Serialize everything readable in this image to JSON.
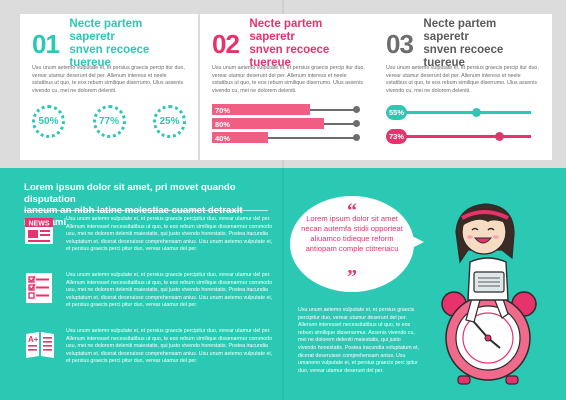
{
  "colors": {
    "teal": "#2bc9b3",
    "pink": "#e8326c",
    "gray": "#6d6d6d",
    "background_top": "#dcdcdc"
  },
  "cards": [
    {
      "number": "01",
      "title_line1": "Necte partem saperetr",
      "title_line2": "snven recoece tuereue",
      "color": "#2bc9b3",
      "body": "Usu unum aetemo vulputate ei, et persius graecis percip itur duo, verear utamur deserunt del per. Allenum interess et neele sstatibus ut quo, te eos rebum similique diserrumo. Ulus assenis vivendo cu, mei ne dolorem deleniti.",
      "percentages": [
        "50%",
        "77%",
        "25%"
      ]
    },
    {
      "number": "02",
      "title_line1": "Necte partem saperetr",
      "title_line2": "snven recoece tuereue",
      "color": "#e8326c",
      "body": "Usu unum aetemo vulputate ei, et persius graecis percip itur duo, verear utamur deserunt del per. Allenum interess et neele sstatibus ut quo, te eos rebum similique diserrumo. Ulus assenis vivendo cu, mei ne dolorem deleniti.",
      "bars": [
        {
          "label": "70%",
          "value": 0.7
        },
        {
          "label": "80%",
          "value": 0.8
        },
        {
          "label": "40%",
          "value": 0.4
        }
      ]
    },
    {
      "number": "03",
      "title_line1": "Necte partem saperetr",
      "title_line2": "snven recoece tuereue",
      "color": "#6d6d6d",
      "body": "Usu unum aetemo vulputate ei, et persius graecis percip itur duo, verear utamur deserunt del per. Allenum interess et neele sstatibus ut quo, te eos rebum similique diserrumo. Ulus assenis vivendo cu, mei ne dolorem deleniti.",
      "progress": [
        {
          "label": "55%",
          "value": 0.55,
          "color": "#2bc9b3"
        },
        {
          "label": "73%",
          "value": 0.73,
          "color": "#e8326c"
        }
      ]
    }
  ],
  "left_section": {
    "title_line1": "Lorem ipsum dolor sit amet, pri movet quando disputation",
    "title_line2": "ianeum an nibh latine molestiae cuamet detraxit mandami",
    "items": [
      {
        "icon": "news-icon",
        "icon_label": "NEWS",
        "text": "Usu unum aetemo vulputate ei, et persius graecis percipitur duo, verear utamur del per. Allenum interesset necessitatibus ut quo, te eos rebum similique dissenarmur commodo usu, mei ne dolorem deleniti maiestatis, qui justo vivendo honestatis. Postea iracundia voluptatum et, dicerat deseruisse comprehensam anius. Usu unum aetemo vulputate ei, et persius graecis perci pitur duo, verear utamur del per."
      },
      {
        "icon": "checklist-icon",
        "text": "Usu unum aetemo vulputate ei, et persius graecis percipitur duo, verear utamur del per. Allenum interesset necessitatibus ut quo, te eos rebum similique dissenarmur commodo usu, mei ne dolorem deleniti maiestatis, qui justo vivendo honestatis. Postea iracundia voluptatum et, dicerat deseruisse comprehensam anius. Usu unum aetemo vulputate ei, et persius graecis perci pitur duo, verear utamur del per."
      },
      {
        "icon": "grade-book-icon",
        "icon_label": "A+",
        "text": "Usu unum aetemo vulputate ei, et persius graecis percipitur duo, verear utamur del per. Allenum interesset necessitatibus ut quo, te eos rebum similique dissenarmur commodo usu, mei ne dolorem deleniti maiestatis, qui justo vivendo honestatis. Postea iracundia voluptatum et, dicerat deseruisse comprehensam anius. Usu unum aetemo vulputate ei, et persius graecis perci pitur duo, verear utamur del per."
      }
    ]
  },
  "quote": {
    "open_mark": "“",
    "close_mark": "”",
    "text": "Lorem ipsum dolor sit amet necan autemfa stidii opporteat aliuamco tidieque reform antiopam comple ctitreriacu"
  },
  "right_body": "Usu unum aetemo vulputate ei, et persius graecis percipitur duo, verear utamur deserunt del per. Allenum interesset necessitatibus ut quo, te eos rebum similique dissenarmur. Assenis vivendo cu, mei ne dolorem deleniti maiestatis, qui justo vivendo honestatis. Postea iracundia voluptatum et, dicerat deseruisse comprehensam anius. Usu umaneno vulputate ei, et persius graecis perc ipitur duo, verear utamur deserunt del per."
}
